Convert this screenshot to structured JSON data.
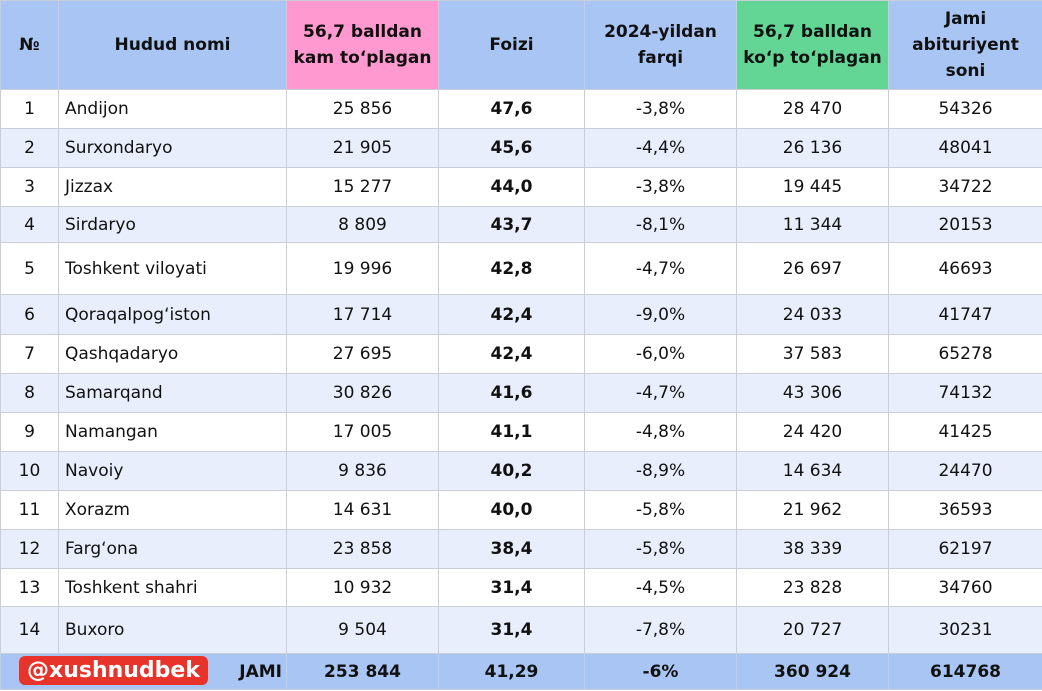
{
  "header": {
    "columns": [
      "№",
      "Hudud nomi",
      "56,7 balldan kam to‘plagan",
      "Foizi",
      "2024-yildan farqi",
      "56,7 balldan ko‘p to‘plagan",
      "Jami abituriyent soni"
    ]
  },
  "table": {
    "rows": [
      [
        "1",
        "Andijon",
        "25 856",
        "47,6",
        "-3,8%",
        "28 470",
        "54326"
      ],
      [
        "2",
        "Surxondaryo",
        "21 905",
        "45,6",
        "-4,4%",
        "26 136",
        "48041"
      ],
      [
        "3",
        "Jizzax",
        "15 277",
        "44,0",
        "-3,8%",
        "19 445",
        "34722"
      ],
      [
        "4",
        "Sirdaryo",
        "8 809",
        "43,7",
        "-8,1%",
        "11 344",
        "20153"
      ],
      [
        "5",
        "Toshkent viloyati",
        "19 996",
        "42,8",
        "-4,7%",
        "26 697",
        "46693"
      ],
      [
        "6",
        "Qoraqalpog‘iston",
        "17 714",
        "42,4",
        "-9,0%",
        "24 033",
        "41747"
      ],
      [
        "7",
        "Qashqadaryo",
        "27 695",
        "42,4",
        "-6,0%",
        "37 583",
        "65278"
      ],
      [
        "8",
        "Samarqand",
        "30 826",
        "41,6",
        "-4,7%",
        "43 306",
        "74132"
      ],
      [
        "9",
        "Namangan",
        "17 005",
        "41,1",
        "-4,8%",
        "24 420",
        "41425"
      ],
      [
        "10",
        "Navoiy",
        "9 836",
        "40,2",
        "-8,9%",
        "14 634",
        "24470"
      ],
      [
        "11",
        "Xorazm",
        "14 631",
        "40,0",
        "-5,8%",
        "21 962",
        "36593"
      ],
      [
        "12",
        "Farg‘ona",
        "23 858",
        "38,4",
        "-5,8%",
        "38 339",
        "62197"
      ],
      [
        "13",
        "Toshkent shahri",
        "10 932",
        "31,4",
        "-4,5%",
        "23 828",
        "34760"
      ],
      [
        "14",
        "Buxoro",
        "9 504",
        "31,4",
        "-7,8%",
        "20 727",
        "30231"
      ]
    ]
  },
  "footer": {
    "watermark": "@xushnudbek",
    "label": "JAMI",
    "values": [
      "253 844",
      "41,29",
      "-6%",
      "360 924",
      "614768"
    ]
  }
}
